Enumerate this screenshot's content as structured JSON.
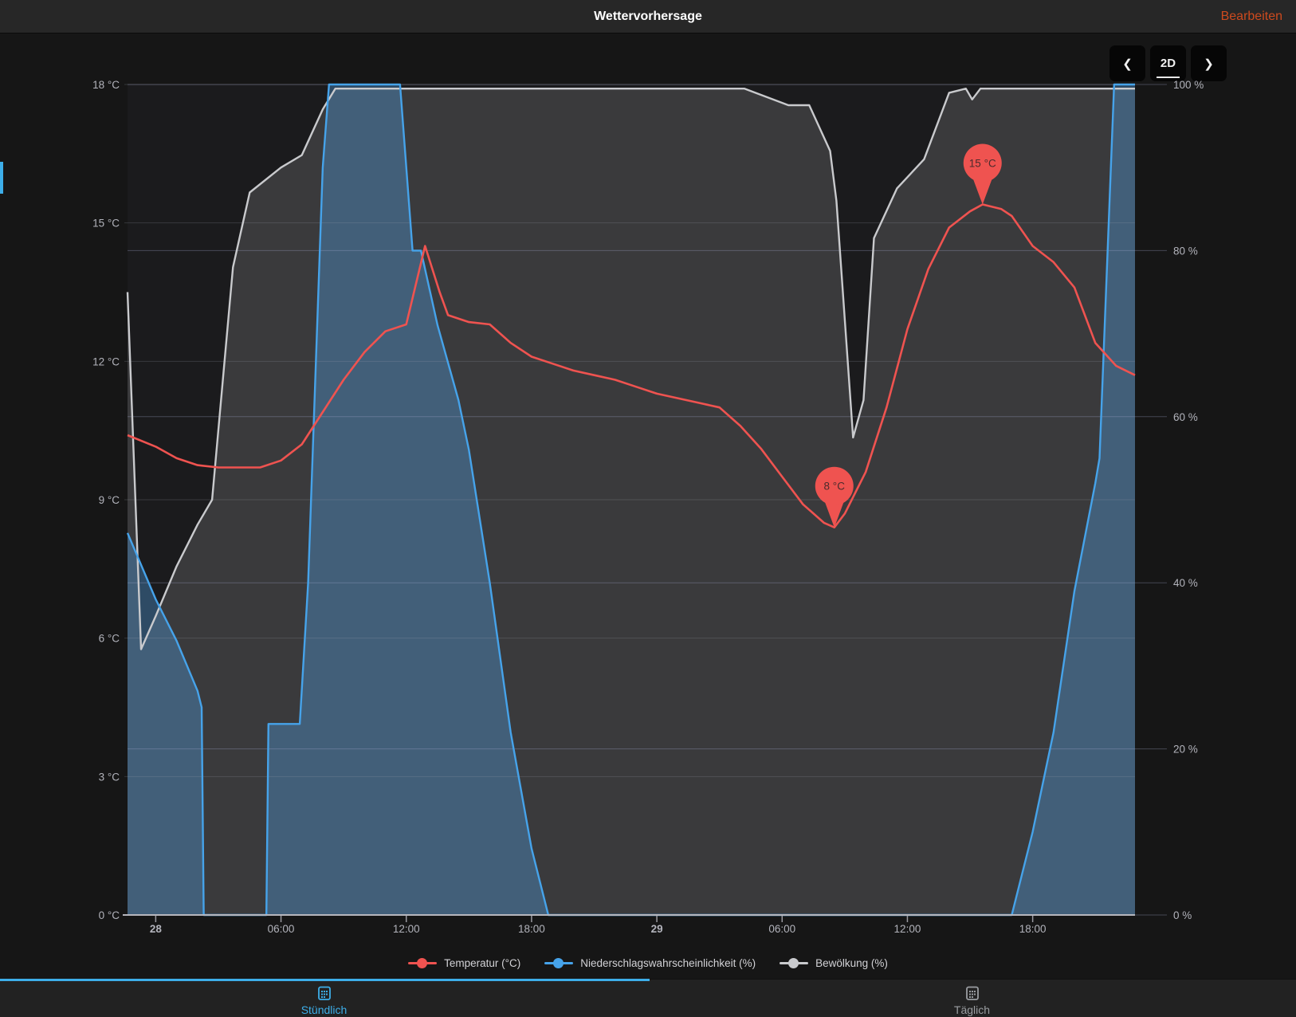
{
  "header": {
    "title": "Wettervorhersage",
    "edit_label": "Bearbeiten",
    "edit_color": "#cd4a1e"
  },
  "toolbar": {
    "prev_icon": "❮",
    "range_label": "2D",
    "next_icon": "❯"
  },
  "theme": {
    "accent": "#3daee9",
    "background": "#161616",
    "header_background": "#272727"
  },
  "chart_data": {
    "type": "line",
    "title": "Wettervorhersage",
    "x_axis": {
      "range": [
        -1.35,
        46.9
      ],
      "unit": "hours from day 28 00:00",
      "ticks": [
        {
          "t": 0,
          "label": "28",
          "bold": true
        },
        {
          "t": 6,
          "label": "06:00",
          "bold": false
        },
        {
          "t": 12,
          "label": "12:00",
          "bold": false
        },
        {
          "t": 18,
          "label": "18:00",
          "bold": false
        },
        {
          "t": 24,
          "label": "29",
          "bold": true
        },
        {
          "t": 30,
          "label": "06:00",
          "bold": false
        },
        {
          "t": 36,
          "label": "12:00",
          "bold": false
        },
        {
          "t": 42,
          "label": "18:00",
          "bold": false
        }
      ]
    },
    "y_left": {
      "range": [
        0,
        18
      ],
      "ticks": [
        {
          "value": 18,
          "label": "18 °C"
        },
        {
          "value": 15,
          "label": "15 °C"
        },
        {
          "value": 12,
          "label": "12 °C"
        },
        {
          "value": 9,
          "label": "9 °C"
        },
        {
          "value": 6,
          "label": "6 °C"
        },
        {
          "value": 3,
          "label": "3 °C"
        },
        {
          "value": 0,
          "label": "0 °C"
        }
      ]
    },
    "y_right": {
      "range": [
        0,
        100
      ],
      "ticks": [
        {
          "value": 100,
          "label": "100 %"
        },
        {
          "value": 80,
          "label": "80 %"
        },
        {
          "value": 60,
          "label": "60 %"
        },
        {
          "value": 40,
          "label": "40 %"
        },
        {
          "value": 20,
          "label": "20 %"
        },
        {
          "value": 0,
          "label": "0 %"
        }
      ]
    },
    "colors": {
      "temperature": "#ef5350",
      "precipitation": "#46a3ea",
      "precipitation_fill": "rgba(80,160,230,0.36)",
      "cloud": "#c9cacd",
      "cloud_fill": "#3a3a3c",
      "pin_fill": "#ef5350",
      "pin_text": "#4b2b2c"
    },
    "series": [
      {
        "name": "Temperatur (°C)",
        "axis": "left",
        "style": "line",
        "points": [
          [
            -1.35,
            10.4
          ],
          [
            0,
            10.15
          ],
          [
            1,
            9.9
          ],
          [
            2,
            9.75
          ],
          [
            3,
            9.7
          ],
          [
            4,
            9.7
          ],
          [
            5,
            9.7
          ],
          [
            6,
            9.85
          ],
          [
            7,
            10.2
          ],
          [
            8,
            10.9
          ],
          [
            9,
            11.6
          ],
          [
            10,
            12.2
          ],
          [
            11,
            12.65
          ],
          [
            12,
            12.8
          ],
          [
            12.9,
            14.5
          ],
          [
            13.6,
            13.5
          ],
          [
            14,
            13.0
          ],
          [
            15,
            12.85
          ],
          [
            16,
            12.8
          ],
          [
            17,
            12.4
          ],
          [
            18,
            12.1
          ],
          [
            19,
            11.95
          ],
          [
            20,
            11.8
          ],
          [
            21,
            11.7
          ],
          [
            22,
            11.6
          ],
          [
            23,
            11.45
          ],
          [
            24,
            11.3
          ],
          [
            25,
            11.2
          ],
          [
            26,
            11.1
          ],
          [
            27,
            11.0
          ],
          [
            28,
            10.6
          ],
          [
            29,
            10.1
          ],
          [
            30,
            9.5
          ],
          [
            31,
            8.9
          ],
          [
            32,
            8.5
          ],
          [
            32.5,
            8.4
          ],
          [
            33,
            8.7
          ],
          [
            34,
            9.6
          ],
          [
            35,
            11.0
          ],
          [
            36,
            12.7
          ],
          [
            37,
            14.0
          ],
          [
            38,
            14.9
          ],
          [
            39,
            15.25
          ],
          [
            39.6,
            15.4
          ],
          [
            40.5,
            15.3
          ],
          [
            41,
            15.15
          ],
          [
            42,
            14.5
          ],
          [
            43,
            14.15
          ],
          [
            44,
            13.6
          ],
          [
            45,
            12.4
          ],
          [
            46,
            11.9
          ],
          [
            46.9,
            11.7
          ]
        ]
      },
      {
        "name": "Niederschlagswahrscheinlichkeit (%)",
        "axis": "right",
        "style": "area",
        "points": [
          [
            -1.35,
            46
          ],
          [
            0,
            38
          ],
          [
            1,
            33
          ],
          [
            2,
            27
          ],
          [
            2.2,
            25
          ],
          [
            2.3,
            0
          ],
          [
            5.3,
            0
          ],
          [
            5.4,
            23
          ],
          [
            6.9,
            23
          ],
          [
            7.3,
            40
          ],
          [
            8,
            90
          ],
          [
            8.3,
            100
          ],
          [
            11.7,
            100
          ],
          [
            12.3,
            80
          ],
          [
            12.7,
            80
          ],
          [
            13.5,
            71
          ],
          [
            14.5,
            62
          ],
          [
            15,
            56
          ],
          [
            16,
            40
          ],
          [
            17,
            22
          ],
          [
            18,
            8
          ],
          [
            18.8,
            0
          ],
          [
            41,
            0
          ],
          [
            42,
            10
          ],
          [
            43,
            22
          ],
          [
            44,
            39
          ],
          [
            45,
            52
          ],
          [
            45.2,
            55
          ],
          [
            45.9,
            100
          ],
          [
            46.9,
            100
          ]
        ]
      },
      {
        "name": "Bewölkung (%)",
        "axis": "right",
        "style": "area",
        "points": [
          [
            -1.35,
            75
          ],
          [
            -0.7,
            32
          ],
          [
            0,
            36
          ],
          [
            1,
            42
          ],
          [
            2,
            47
          ],
          [
            2.7,
            50
          ],
          [
            3.7,
            78
          ],
          [
            4.5,
            87
          ],
          [
            6,
            90
          ],
          [
            7,
            91.5
          ],
          [
            8,
            97
          ],
          [
            8.6,
            99.5
          ],
          [
            28.2,
            99.5
          ],
          [
            30.3,
            97.5
          ],
          [
            31.3,
            97.5
          ],
          [
            32.3,
            92
          ],
          [
            32.6,
            86
          ],
          [
            33.4,
            57.5
          ],
          [
            33.9,
            62
          ],
          [
            34.4,
            81.5
          ],
          [
            35.5,
            87.5
          ],
          [
            36.8,
            91
          ],
          [
            38,
            99
          ],
          [
            38.8,
            99.5
          ],
          [
            39.1,
            98.2
          ],
          [
            39.5,
            99.5
          ],
          [
            46.9,
            99.5
          ]
        ]
      }
    ],
    "annotations": [
      {
        "t": 32.5,
        "value": 8.4,
        "label": "8 °C"
      },
      {
        "t": 39.6,
        "value": 15.4,
        "label": "15 °C"
      }
    ]
  },
  "legend": {
    "items": [
      {
        "label": "Temperatur (°C)"
      },
      {
        "label": "Niederschlagswahrscheinlichkeit (%)"
      },
      {
        "label": "Bewölkung (%)"
      }
    ]
  },
  "tabs": [
    {
      "label": "Stündlich",
      "active": true
    },
    {
      "label": "Täglich",
      "active": false
    }
  ]
}
